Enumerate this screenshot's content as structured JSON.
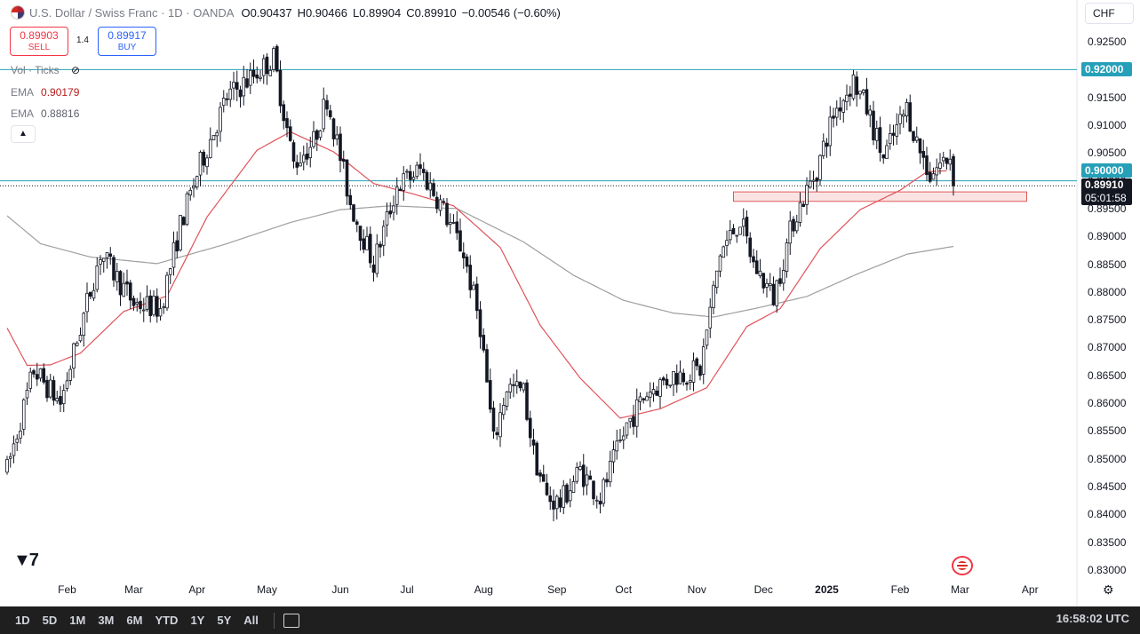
{
  "header": {
    "title": "U.S. Dollar / Swiss Franc · 1D · OANDA",
    "ohlc": {
      "o_label": "O",
      "o": "0.90437",
      "h_label": "H",
      "h": "0.90466",
      "l_label": "L",
      "l": "0.89904",
      "c_label": "C",
      "c": "0.89910",
      "change": "−0.00546 (−0.60%)"
    },
    "currency": "CHF"
  },
  "trade": {
    "sell_price": "0.89903",
    "sell_label": "SELL",
    "spread": "1.4",
    "buy_price": "0.89917",
    "buy_label": "BUY"
  },
  "indicators": {
    "vol_label": "Vol · Ticks",
    "ema1_label": "EMA",
    "ema1_value": "0.90179",
    "ema2_label": "EMA",
    "ema2_value": "0.88816"
  },
  "price_tags": {
    "level_920": "0.92000",
    "level_900": "0.90000",
    "last_price": "0.89910",
    "countdown": "05:01:58"
  },
  "bottom_bar": {
    "ranges": [
      "1D",
      "5D",
      "1M",
      "3M",
      "6M",
      "YTD",
      "1Y",
      "5Y",
      "All"
    ],
    "clock": "16:58:02 UTC"
  },
  "colors": {
    "up": "#131722",
    "ema50": "#e0525a",
    "ema200": "#9e9e9e",
    "hline": "#26a0b8",
    "zone_fill": "#fbe3e3",
    "zone_stroke": "#e05a5a"
  },
  "chart_data": {
    "type": "candlestick",
    "symbol": "USDCHF",
    "x_labels": [
      "Feb",
      "Mar",
      "Apr",
      "May",
      "Jun",
      "Jul",
      "Aug",
      "Sep",
      "Oct",
      "Nov",
      "Dec",
      "2025",
      "Feb",
      "Mar",
      "Apr"
    ],
    "x_label_index": [
      18,
      38,
      57,
      78,
      100,
      120,
      143,
      165,
      185,
      207,
      227,
      246,
      268,
      286,
      307
    ],
    "y_ticks": [
      "0.92500",
      "0.92000",
      "0.91500",
      "0.91000",
      "0.90500",
      "0.90000",
      "0.89500",
      "0.89000",
      "0.88500",
      "0.88000",
      "0.87500",
      "0.87000",
      "0.86500",
      "0.86000",
      "0.85500",
      "0.85000",
      "0.84500",
      "0.84000",
      "0.83500",
      "0.83000"
    ],
    "ylim": [
      0.8295,
      0.9265
    ],
    "horizontal_lines": [
      0.92,
      0.9
    ],
    "support_zone": {
      "from_index": 218,
      "to_index": 306,
      "low": 0.8963,
      "high": 0.898
    },
    "anchors": [
      [
        0,
        0.848
      ],
      [
        8,
        0.866
      ],
      [
        16,
        0.86
      ],
      [
        28,
        0.887
      ],
      [
        38,
        0.878
      ],
      [
        46,
        0.877
      ],
      [
        52,
        0.892
      ],
      [
        58,
        0.903
      ],
      [
        66,
        0.915
      ],
      [
        80,
        0.922
      ],
      [
        86,
        0.903
      ],
      [
        92,
        0.907
      ],
      [
        96,
        0.915
      ],
      [
        103,
        0.896
      ],
      [
        110,
        0.885
      ],
      [
        117,
        0.899
      ],
      [
        124,
        0.902
      ],
      [
        130,
        0.896
      ],
      [
        137,
        0.887
      ],
      [
        142,
        0.874
      ],
      [
        146,
        0.853
      ],
      [
        150,
        0.863
      ],
      [
        155,
        0.862
      ],
      [
        158,
        0.851
      ],
      [
        162,
        0.843
      ],
      [
        166,
        0.842
      ],
      [
        172,
        0.848
      ],
      [
        178,
        0.843
      ],
      [
        186,
        0.856
      ],
      [
        192,
        0.862
      ],
      [
        200,
        0.865
      ],
      [
        208,
        0.866
      ],
      [
        214,
        0.887
      ],
      [
        220,
        0.893
      ],
      [
        224,
        0.885
      ],
      [
        230,
        0.879
      ],
      [
        236,
        0.893
      ],
      [
        243,
        0.902
      ],
      [
        248,
        0.912
      ],
      [
        254,
        0.918
      ],
      [
        258,
        0.913
      ],
      [
        263,
        0.904
      ],
      [
        266,
        0.908
      ],
      [
        270,
        0.913
      ],
      [
        273,
        0.907
      ],
      [
        277,
        0.901
      ],
      [
        280,
        0.903
      ],
      [
        283,
        0.9044
      ],
      [
        284,
        0.8991
      ]
    ],
    "ema50_anchors": [
      [
        0,
        0.8735
      ],
      [
        6,
        0.8668
      ],
      [
        13,
        0.8669
      ],
      [
        22,
        0.869
      ],
      [
        35,
        0.8765
      ],
      [
        48,
        0.8793
      ],
      [
        60,
        0.8935
      ],
      [
        75,
        0.9055
      ],
      [
        85,
        0.9088
      ],
      [
        98,
        0.9052
      ],
      [
        110,
        0.8995
      ],
      [
        122,
        0.8976
      ],
      [
        134,
        0.8955
      ],
      [
        148,
        0.888
      ],
      [
        160,
        0.874
      ],
      [
        172,
        0.8645
      ],
      [
        184,
        0.8573
      ],
      [
        196,
        0.859
      ],
      [
        210,
        0.8628
      ],
      [
        222,
        0.8738
      ],
      [
        232,
        0.877
      ],
      [
        244,
        0.8878
      ],
      [
        256,
        0.8948
      ],
      [
        268,
        0.8983
      ],
      [
        276,
        0.9016
      ],
      [
        282,
        0.9018
      ]
    ],
    "ema200_anchors": [
      [
        0,
        0.8937
      ],
      [
        10,
        0.8887
      ],
      [
        25,
        0.8863
      ],
      [
        45,
        0.8851
      ],
      [
        65,
        0.8885
      ],
      [
        85,
        0.8925
      ],
      [
        100,
        0.8948
      ],
      [
        115,
        0.8955
      ],
      [
        135,
        0.895
      ],
      [
        155,
        0.889
      ],
      [
        170,
        0.883
      ],
      [
        185,
        0.8785
      ],
      [
        200,
        0.8762
      ],
      [
        212,
        0.8755
      ],
      [
        225,
        0.8771
      ],
      [
        240,
        0.8792
      ],
      [
        255,
        0.8832
      ],
      [
        270,
        0.8868
      ],
      [
        284,
        0.8882
      ]
    ]
  }
}
